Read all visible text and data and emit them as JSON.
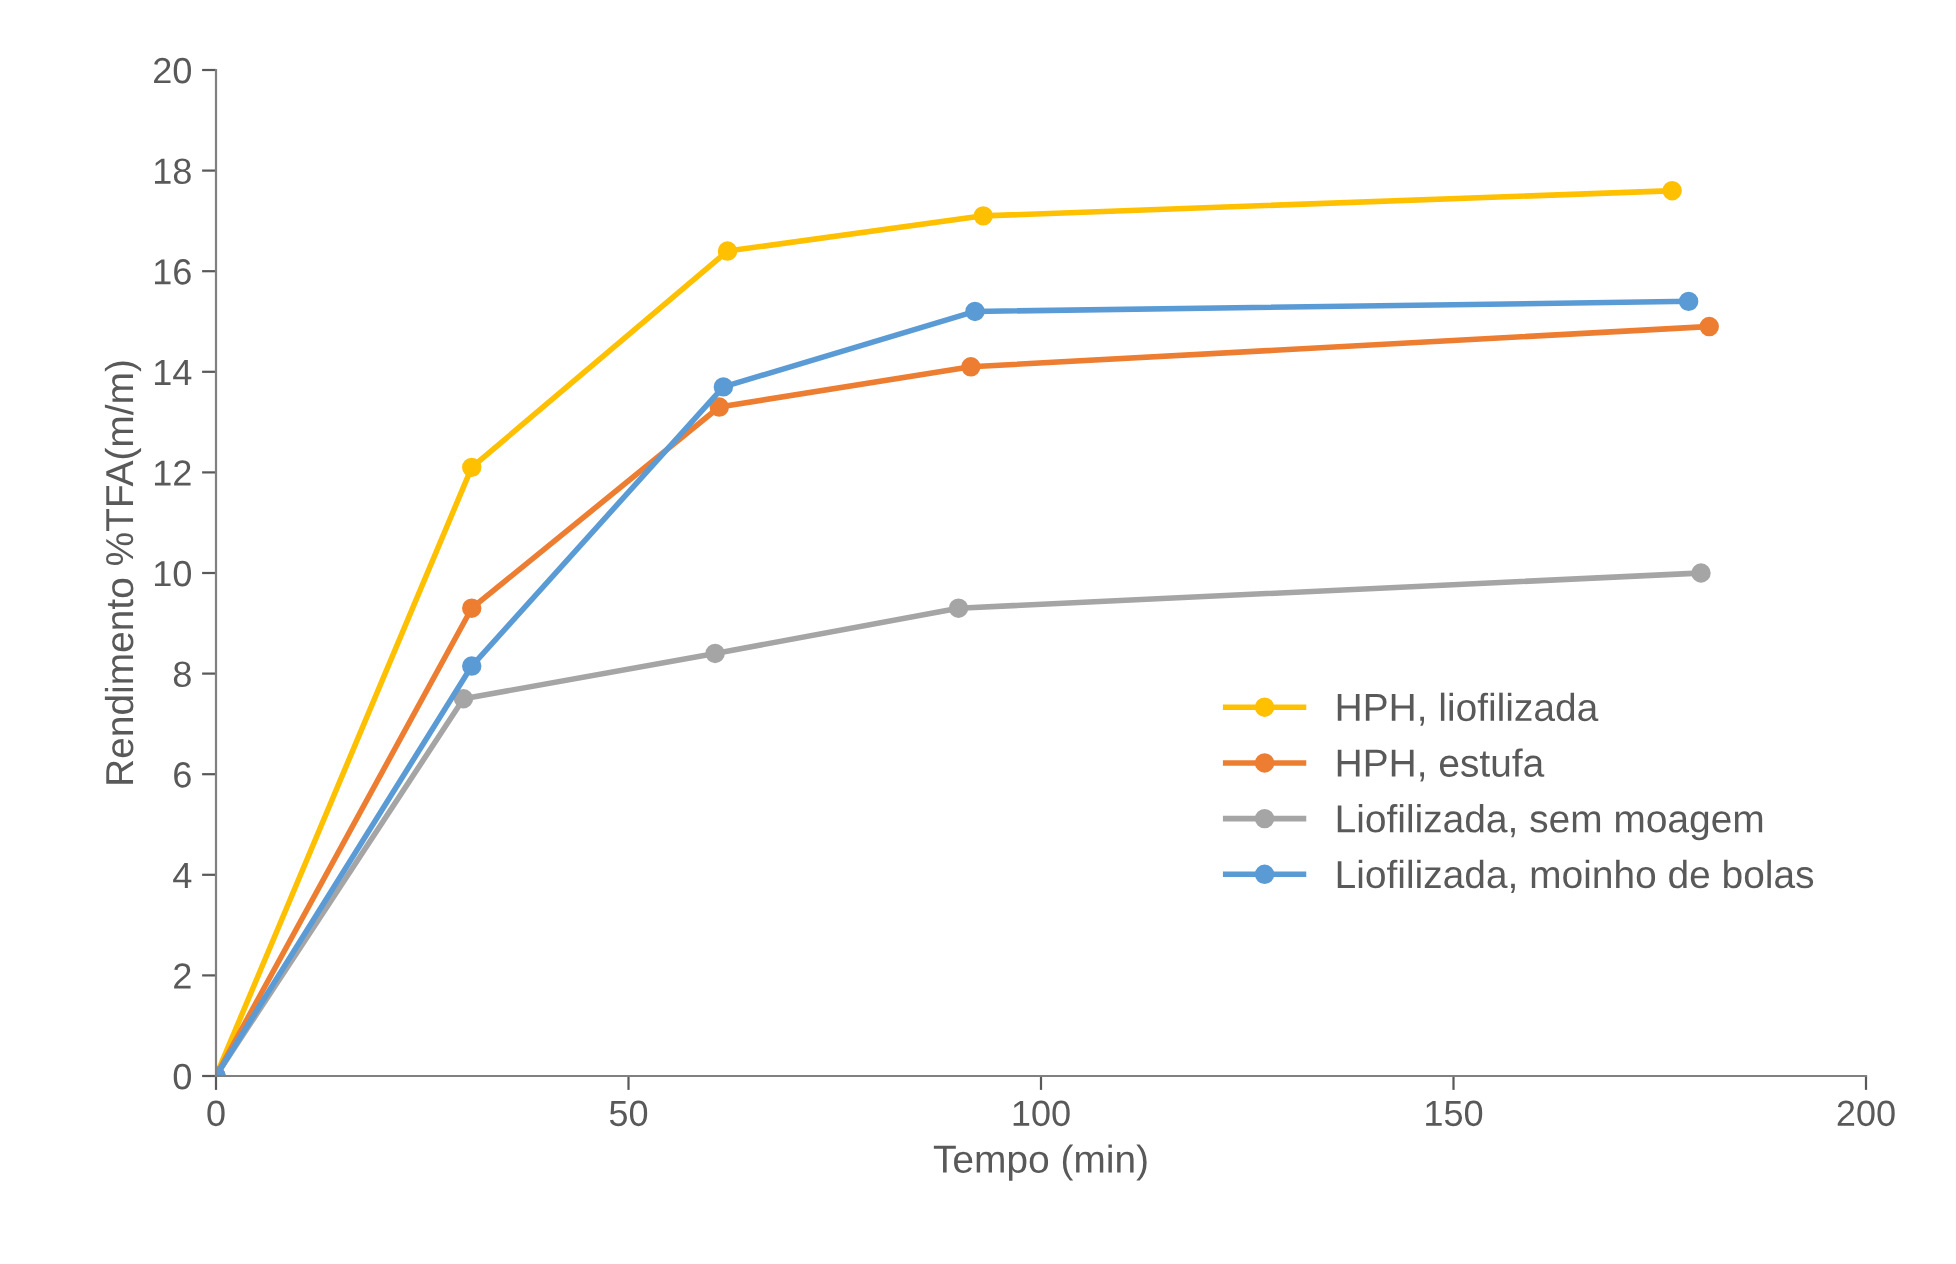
{
  "chart_data": {
    "type": "line",
    "xlabel": "Tempo (min)",
    "ylabel": "Rendimento %TFA(m/m)",
    "xlim": [
      0,
      200
    ],
    "xticks": [
      0,
      50,
      100,
      150,
      200
    ],
    "ylim": [
      0,
      20
    ],
    "yticks": [
      0,
      2,
      4,
      6,
      8,
      10,
      12,
      14,
      16,
      18,
      20
    ],
    "marker": "circle",
    "line_style": "solid",
    "legend": "right",
    "grid": false,
    "series": [
      {
        "name": "HPH, liofilizada",
        "color": "#ffc000",
        "x": [
          0,
          31,
          62,
          93,
          176.5
        ],
        "values": [
          0,
          12.1,
          16.4,
          17.1,
          17.6
        ]
      },
      {
        "name": "HPH, estufa",
        "color": "#ed7d31",
        "x": [
          0,
          31,
          61,
          91.5,
          181
        ],
        "values": [
          0,
          9.3,
          13.3,
          14.1,
          14.9
        ]
      },
      {
        "name": "Liofilizada, sem moagem",
        "color": "#a5a5a5",
        "x": [
          0,
          30,
          60.5,
          90,
          180
        ],
        "values": [
          0,
          7.5,
          8.4,
          9.3,
          10
        ]
      },
      {
        "name": "Liofilizada, moinho de bolas",
        "color": "#5b9bd5",
        "x": [
          0,
          31,
          61.5,
          92,
          178.5
        ],
        "values": [
          0,
          8.15,
          13.7,
          15.2,
          15.4
        ]
      }
    ]
  }
}
